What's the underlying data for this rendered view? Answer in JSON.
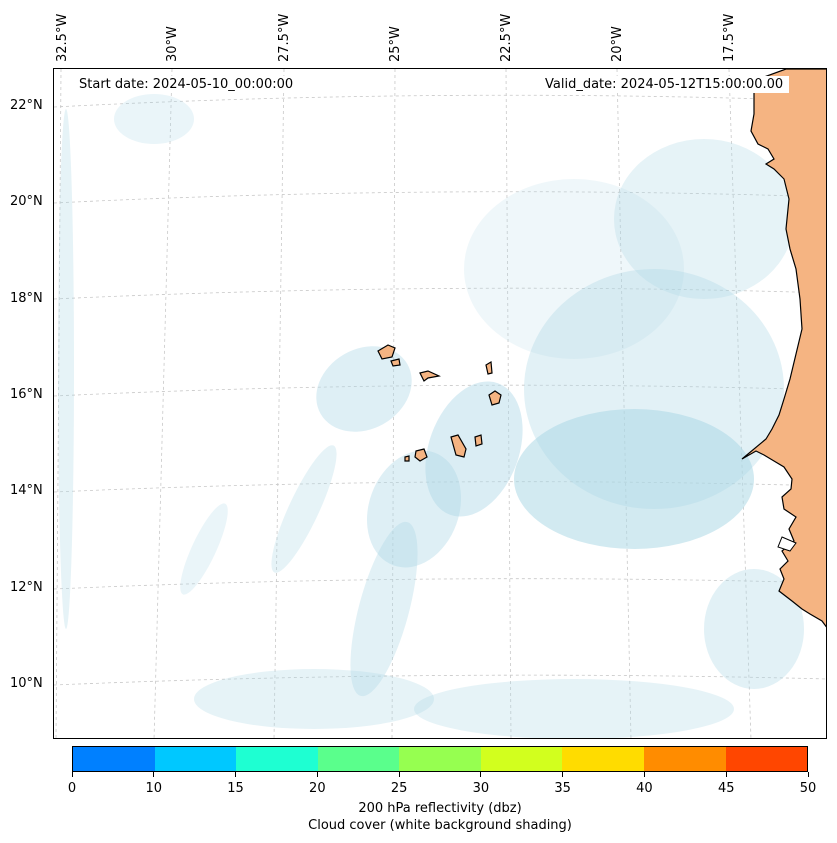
{
  "header": {
    "start_date": "Start date: 2024-05-10_00:00:00",
    "valid_date": "Valid_date: 2024-05-12T15:00:00.00"
  },
  "axes": {
    "longitude_labels": [
      "32.5°W",
      "30°W",
      "27.5°W",
      "25°W",
      "22.5°W",
      "20°W",
      "17.5°W"
    ],
    "latitude_labels": [
      "22°N",
      "20°N",
      "18°N",
      "16°N",
      "14°N",
      "12°N",
      "10°N"
    ]
  },
  "colorbar": {
    "ticks": [
      "0",
      "10",
      "15",
      "20",
      "25",
      "30",
      "35",
      "40",
      "45",
      "50"
    ],
    "colors": [
      "#0080ff",
      "#00c8ff",
      "#1effd2",
      "#5aff8c",
      "#96ff50",
      "#d2ff1e",
      "#ffdc00",
      "#ff8c00",
      "#ff4600"
    ],
    "label_line1": "200 hPa reflectivity (dbz)",
    "label_line2": "Cloud cover (white background shading)"
  },
  "map": {
    "land_color": "#f5b482",
    "cloud_color": "#add8e6",
    "coastline_color": "#000000",
    "gridline_color": "#c8c8c8"
  }
}
